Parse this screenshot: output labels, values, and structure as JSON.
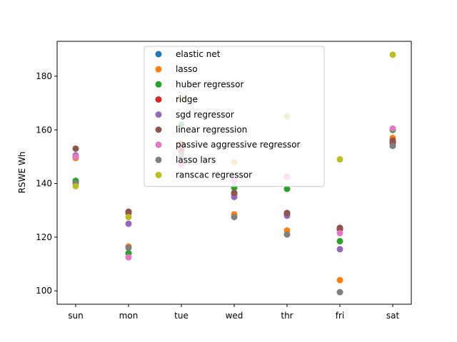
{
  "chart_data": {
    "type": "scatter",
    "title": "",
    "xlabel": "",
    "ylabel": "RSWE Wh",
    "categories": [
      "sun",
      "mon",
      "tue",
      "wed",
      "thr",
      "fri",
      "sat"
    ],
    "ylim": [
      95,
      193
    ],
    "yticks": [
      100,
      120,
      140,
      160,
      180
    ],
    "grid": false,
    "legend_position": "upper-center",
    "series": [
      {
        "name": "elastic net",
        "color": "#1f77b4",
        "values": [
          140.5,
          114,
          152,
          138.5,
          128.5,
          123,
          155.5
        ]
      },
      {
        "name": "lasso",
        "color": "#ff7f0e",
        "values": [
          149.5,
          116.5,
          155,
          128.5,
          122.5,
          104,
          157
        ]
      },
      {
        "name": "huber regressor",
        "color": "#2ca02c",
        "values": [
          141,
          114,
          162,
          138.5,
          138,
          118.5,
          160
        ]
      },
      {
        "name": "ridge",
        "color": "#d62728",
        "values": [
          150,
          129,
          152.5,
          136,
          129,
          123,
          155
        ]
      },
      {
        "name": "sgd regressor",
        "color": "#9467bd",
        "values": [
          150.5,
          125,
          150.5,
          135,
          128,
          115.5,
          156
        ]
      },
      {
        "name": "linear regression",
        "color": "#8c564b",
        "values": [
          153,
          129.5,
          154.5,
          136.5,
          129,
          123.5,
          156
        ]
      },
      {
        "name": "passive aggressive regressor",
        "color": "#e377c2",
        "values": [
          150,
          112.5,
          147,
          141,
          142.5,
          121.5,
          160.5
        ]
      },
      {
        "name": "lasso lars",
        "color": "#7f7f7f",
        "values": [
          140,
          116,
          151,
          127.5,
          121,
          99.5,
          154
        ]
      },
      {
        "name": "ranscac regressor",
        "color": "#bcbd22",
        "values": [
          139,
          127.5,
          171.5,
          148,
          165,
          149,
          188
        ]
      }
    ]
  }
}
